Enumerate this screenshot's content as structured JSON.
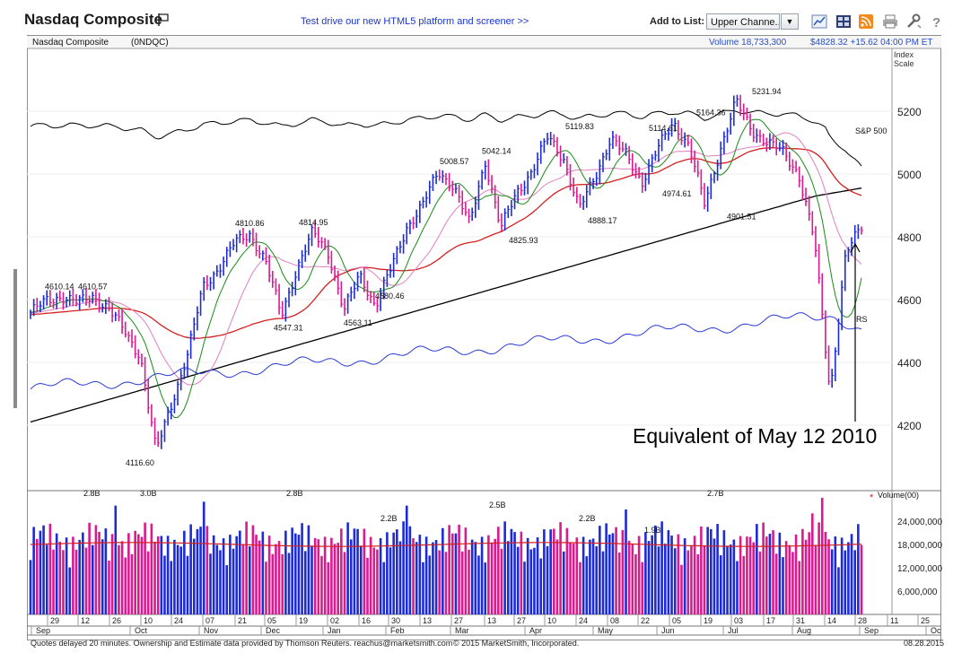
{
  "header": {
    "title": "Nasdaq Composite",
    "promo_link": "Test drive our new HTML5 platform and screener >>",
    "add_to_list_label": "Add to List:",
    "list_select_value": "Upper Channe..."
  },
  "toolbar": {
    "icons": [
      "chart-style-icon",
      "layout-icon",
      "rss-icon",
      "print-icon",
      "tools-icon",
      "help-icon"
    ]
  },
  "info": {
    "name": "Nasdaq Composite",
    "symbol": "(0NDQC)",
    "volume": "Volume 18,733,300",
    "quote": "$4828.32 +15.62  04:00 PM ET"
  },
  "chart_data": {
    "type": "candlestick",
    "price_axis": {
      "label_line1": "Index",
      "label_line2": "Scale",
      "ticks": [
        4200,
        4400,
        4600,
        4800,
        5000,
        5200
      ],
      "ylim": [
        4050,
        5260
      ]
    },
    "price_axis_labels": [
      "4200",
      "4400",
      "4600",
      "4800",
      "5000",
      "5200"
    ],
    "x_axis": {
      "day_ticks": [
        "29",
        "12",
        "26",
        "10",
        "24",
        "07",
        "21",
        "05",
        "19",
        "02",
        "16",
        "30",
        "13",
        "27",
        "13",
        "27",
        "10",
        "24",
        "08",
        "22",
        "05",
        "19",
        "03",
        "17",
        "31",
        "14",
        "28",
        "11",
        "25"
      ],
      "months": [
        "Sep",
        "Oct",
        "Nov",
        "Dec",
        "Jan",
        "Feb",
        "Mar",
        "Apr",
        "May",
        "Jun",
        "Jul",
        "Aug",
        "Sep",
        "Oc"
      ]
    },
    "price_annotations": [
      {
        "label": "4610.14",
        "value": 4610.14
      },
      {
        "label": "4610.57",
        "value": 4610.57
      },
      {
        "label": "4116.60",
        "value": 4116.6
      },
      {
        "label": "4810.86",
        "value": 4810.86
      },
      {
        "label": "4547.31",
        "value": 4547.31
      },
      {
        "label": "4814.95",
        "value": 4814.95
      },
      {
        "label": "4563.11",
        "value": 4563.11
      },
      {
        "label": "4580.46",
        "value": 4580.46
      },
      {
        "label": "5008.57",
        "value": 5008.57
      },
      {
        "label": "5042.14",
        "value": 5042.14
      },
      {
        "label": "4825.93",
        "value": 4825.93
      },
      {
        "label": "5119.83",
        "value": 5119.83
      },
      {
        "label": "4888.17",
        "value": 4888.17
      },
      {
        "label": "5114.61",
        "value": 5114.61
      },
      {
        "label": "4974.61",
        "value": 4974.61
      },
      {
        "label": "5164.36",
        "value": 5164.36
      },
      {
        "label": "4901.51",
        "value": 4901.51
      },
      {
        "label": "5231.94",
        "value": 5231.94
      }
    ],
    "overlay_labels": {
      "sp500": "S&P 500",
      "rs": "RS"
    },
    "annotation": "Equivalent of May 12 2010",
    "price_keypoints": [
      4560,
      4595,
      4610,
      4590,
      4610,
      4570,
      4500,
      4420,
      4117,
      4270,
      4420,
      4640,
      4700,
      4780,
      4810,
      4720,
      4550,
      4700,
      4815,
      4750,
      4563,
      4680,
      4580,
      4700,
      4830,
      4900,
      5008,
      4960,
      4840,
      5042,
      4826,
      4940,
      5010,
      5119,
      5050,
      4888,
      4990,
      5114,
      5060,
      4975,
      5080,
      5164,
      5090,
      4902,
      5080,
      5232,
      5140,
      5100,
      5070,
      5000,
      4790,
      4300,
      4750,
      4828
    ],
    "volume": {
      "label": "Volume(00)",
      "ticks": [
        6000000,
        12000000,
        18000000,
        24000000
      ],
      "tick_labels": [
        "6,000,000",
        "12,000,000",
        "18,000,000",
        "24,000,000"
      ],
      "ylim": [
        0,
        30000000
      ],
      "annotations": [
        "2.8B",
        "3.0B",
        "2.8B",
        "2.2B",
        "2.5B",
        "2.2B",
        "1.9B",
        "2.7B"
      ],
      "average": 18000000
    },
    "colors": {
      "up": "#1d2bd6",
      "down": "#d81b8f",
      "ma50": "#d42020",
      "ma200": "#000000",
      "ma10": "#1a8a1a",
      "ma21": "#e07fc0",
      "rs": "#2a3ad6",
      "sp500": "#000000",
      "volume_avg": "#d42020"
    }
  },
  "footer": {
    "left": "Quotes delayed 20 minutes.  Ownership and Estimate data provided by Thomson Reuters. reachus@marketsmith.com",
    "middle": "© 2015 MarketSmith, Incorporated.",
    "date": "08.28.2015"
  }
}
